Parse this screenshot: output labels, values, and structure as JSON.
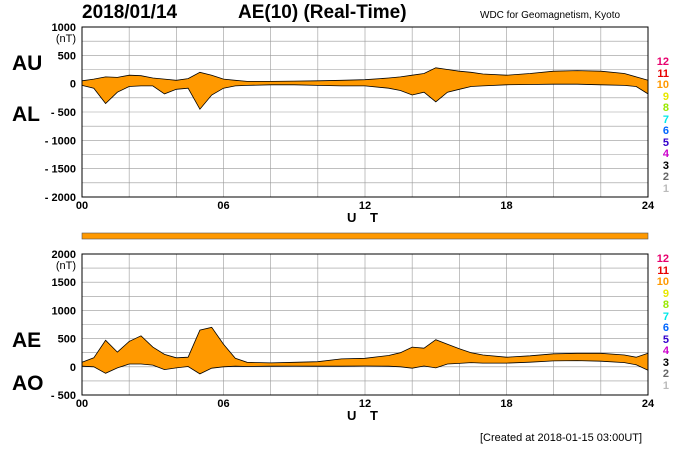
{
  "header": {
    "date": "2018/01/14",
    "title": "AE(10) (Real-Time)",
    "organization": "WDC for Geomagnetism, Kyoto",
    "created": "[Created at 2018-01-15 03:00UT]"
  },
  "legend": {
    "entries": [
      "12",
      "11",
      "10",
      "9",
      "8",
      "7",
      "6",
      "5",
      "4",
      "3",
      "2",
      "1"
    ],
    "colors": [
      "#e8006e",
      "#e80000",
      "#ff9900",
      "#e8e800",
      "#99e800",
      "#00e8e8",
      "#0066ff",
      "#3300cc",
      "#cc00cc",
      "#000000",
      "#666666",
      "#bbbbbb"
    ]
  },
  "colors": {
    "fill": "#ff9900",
    "line": "#000000",
    "grid": "#999999"
  },
  "chart_data": [
    {
      "type": "area",
      "upper_label": "AU",
      "lower_label": "AL",
      "unit": "(nT)",
      "xlabel": "U T",
      "xticks": [
        "00",
        "06",
        "12",
        "18",
        "24"
      ],
      "xlim": [
        0,
        24
      ],
      "ylim": [
        -2000,
        1000
      ],
      "yticks": [
        1000,
        500,
        0,
        -500,
        -1000,
        -1500,
        -2000
      ],
      "ytick_labels": [
        "1000",
        "500",
        "0",
        "- 500",
        "- 1000",
        "- 1500",
        "- 2000"
      ],
      "x": [
        0,
        0.5,
        1,
        1.5,
        2,
        2.5,
        3,
        3.5,
        4,
        4.5,
        5,
        5.5,
        6,
        6.5,
        7,
        8,
        9,
        10,
        11,
        12,
        13,
        13.5,
        14,
        14.5,
        15,
        15.5,
        16,
        16.5,
        17,
        18,
        19,
        20,
        21,
        22,
        23,
        23.5,
        24
      ],
      "AU": [
        50,
        80,
        120,
        110,
        150,
        140,
        100,
        80,
        60,
        90,
        200,
        150,
        80,
        60,
        40,
        40,
        45,
        50,
        60,
        70,
        100,
        120,
        150,
        180,
        280,
        250,
        220,
        200,
        170,
        150,
        180,
        220,
        230,
        220,
        180,
        120,
        60
      ],
      "AL": [
        -30,
        -80,
        -350,
        -150,
        -50,
        -40,
        -40,
        -180,
        -100,
        -80,
        -450,
        -200,
        -80,
        -40,
        -30,
        -20,
        -20,
        -30,
        -40,
        -40,
        -80,
        -120,
        -200,
        -150,
        -320,
        -150,
        -100,
        -50,
        -40,
        -20,
        -15,
        -10,
        -10,
        -20,
        -30,
        -50,
        -180
      ]
    },
    {
      "type": "area",
      "upper_label": "AE",
      "lower_label": "AO",
      "unit": "(nT)",
      "xlabel": "U T",
      "xticks": [
        "00",
        "06",
        "12",
        "18",
        "24"
      ],
      "xlim": [
        0,
        24
      ],
      "ylim": [
        -500,
        2000
      ],
      "yticks": [
        2000,
        1500,
        1000,
        500,
        0,
        -500
      ],
      "ytick_labels": [
        "2000",
        "1500",
        "1000",
        "500",
        "0",
        "- 500"
      ],
      "x": [
        0,
        0.5,
        1,
        1.5,
        2,
        2.5,
        3,
        3.5,
        4,
        4.5,
        5,
        5.5,
        6,
        6.5,
        7,
        8,
        9,
        10,
        11,
        12,
        13,
        13.5,
        14,
        14.5,
        15,
        15.5,
        16,
        16.5,
        17,
        18,
        19,
        20,
        21,
        22,
        23,
        23.5,
        24
      ],
      "AE": [
        80,
        160,
        470,
        260,
        450,
        550,
        350,
        220,
        160,
        170,
        650,
        700,
        400,
        150,
        80,
        70,
        80,
        90,
        140,
        150,
        200,
        250,
        350,
        330,
        480,
        400,
        320,
        250,
        210,
        170,
        195,
        230,
        240,
        240,
        210,
        170,
        240
      ],
      "AO": [
        10,
        0,
        -115,
        -20,
        50,
        50,
        30,
        -50,
        -20,
        5,
        -125,
        -25,
        0,
        10,
        5,
        10,
        12,
        10,
        10,
        15,
        10,
        0,
        -25,
        15,
        -20,
        50,
        60,
        75,
        65,
        65,
        82,
        105,
        110,
        100,
        75,
        35,
        -60
      ]
    }
  ]
}
